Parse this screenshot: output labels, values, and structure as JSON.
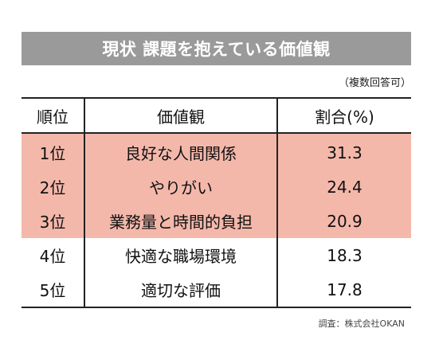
{
  "title": "現状 課題を抱えている価値観",
  "note": "（複数回答可）",
  "table": {
    "headers": [
      "順位",
      "価値観",
      "割合(%)"
    ],
    "rows": [
      {
        "rank": "1位",
        "value": "良好な人間関係",
        "ratio": "31.3",
        "highlight": true
      },
      {
        "rank": "2位",
        "value": "やりがい",
        "ratio": "24.4",
        "highlight": true
      },
      {
        "rank": "3位",
        "value": "業務量と時間的負担",
        "ratio": "20.9",
        "highlight": true
      },
      {
        "rank": "4位",
        "value": "快適な職場環境",
        "ratio": "18.3",
        "highlight": false
      },
      {
        "rank": "5位",
        "value": "適切な評価",
        "ratio": "17.8",
        "highlight": false
      }
    ]
  },
  "source": "調査：株式会社OKAN",
  "colors": {
    "title_bar": "#9a9a9a",
    "highlight": "#f4b8ab"
  }
}
